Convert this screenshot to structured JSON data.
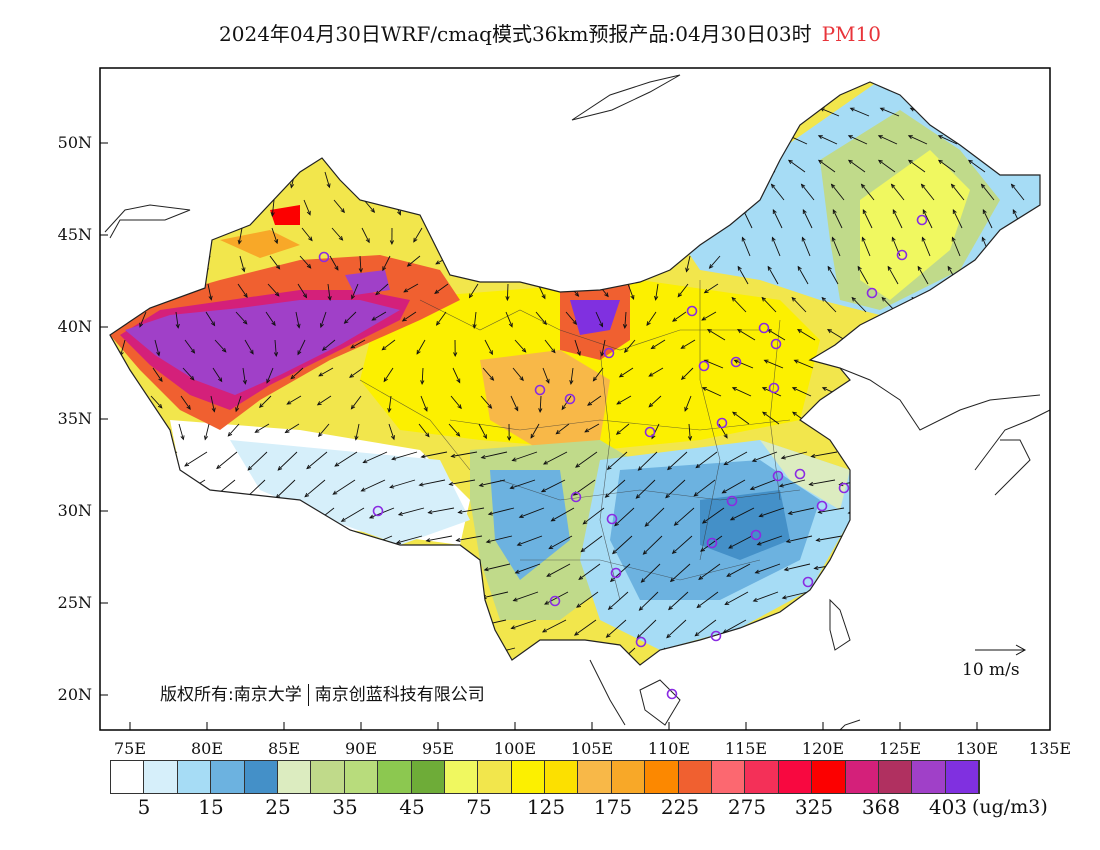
{
  "title": {
    "main": "2024年04月30日WRF/cmaq模式36km预报产品:04月30日03时",
    "pollutant": "PM10"
  },
  "axes": {
    "lat_ticks": [
      "50N",
      "45N",
      "40N",
      "35N",
      "30N",
      "25N",
      "20N"
    ],
    "lon_ticks": [
      "75E",
      "80E",
      "85E",
      "90E",
      "95E",
      "100E",
      "105E",
      "110E",
      "115E",
      "120E",
      "125E",
      "130E",
      "135E"
    ]
  },
  "copyright": {
    "part1": "版权所有:南京大学",
    "part2": "南京创蓝科技有限公司"
  },
  "vector_reference": "10 m/s",
  "colorbar": {
    "colors": [
      "#ffffff",
      "#d6effa",
      "#a6dcf5",
      "#6cb2e0",
      "#4490c8",
      "#dcecc0",
      "#c0da8a",
      "#b8dc7c",
      "#8cc850",
      "#6eac38",
      "#f0f860",
      "#f2e64c",
      "#fcf000",
      "#fce000",
      "#f8b848",
      "#f8a828",
      "#fc8800",
      "#f06030",
      "#fc6870",
      "#f43058",
      "#f80840",
      "#fc0000",
      "#d4207a",
      "#b03060",
      "#a040c8",
      "#8030e0"
    ],
    "labels": [
      "5",
      "15",
      "25",
      "35",
      "45",
      "75",
      "125",
      "175",
      "225",
      "275",
      "325",
      "368",
      "403"
    ],
    "unit": "(ug/m3)"
  }
}
